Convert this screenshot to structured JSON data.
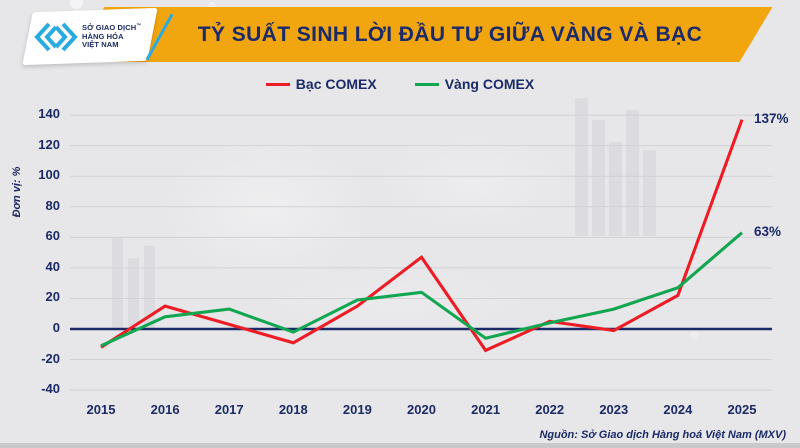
{
  "header": {
    "logo": {
      "org_lines": [
        "SỞ GIAO DỊCH",
        "HÀNG HÓA",
        "VIỆT NAM"
      ],
      "trademark": "™",
      "brand_color": "#29abe2"
    },
    "banner": {
      "title": "TỶ SUẤT SINH LỜI ĐẦU TƯ GIỮA VÀNG VÀ BẠC",
      "bg_color": "#f1a50f",
      "text_color": "#1b2a68"
    }
  },
  "legend": [
    {
      "label": "Bạc COMEX",
      "color": "#ee1c25"
    },
    {
      "label": "Vàng COMEX",
      "color": "#12a651"
    }
  ],
  "chart_data": {
    "type": "line",
    "title": "TỶ SUẤT SINH LỜI ĐẦU TƯ GIỮA VÀNG VÀ BẠC",
    "categories": [
      "2015",
      "2016",
      "2017",
      "2018",
      "2019",
      "2020",
      "2021",
      "2022",
      "2023",
      "2024",
      "2025"
    ],
    "series": [
      {
        "name": "Bạc COMEX",
        "color": "#ee1c25",
        "values": [
          -12,
          15,
          3,
          -9,
          15,
          47,
          -14,
          5,
          -1,
          22,
          137
        ],
        "end_label": "137%"
      },
      {
        "name": "Vàng COMEX",
        "color": "#12a651",
        "values": [
          -11,
          8,
          13,
          -2,
          19,
          24,
          -6,
          4,
          13,
          27,
          63
        ],
        "end_label": "63%"
      }
    ],
    "xlabel": "",
    "ylabel": "Đơn vị: %",
    "ylim": [
      -40,
      140
    ],
    "yticks": [
      -40,
      -20,
      0,
      20,
      40,
      60,
      80,
      100,
      120,
      140
    ],
    "grid": true,
    "zero_line_color": "#1b2a68",
    "grid_color": "#d2d2d6",
    "legend_position": "top"
  },
  "footer": {
    "source": "Nguồn: Sở Giao dịch Hàng hoá Việt Nam (MXV)"
  }
}
